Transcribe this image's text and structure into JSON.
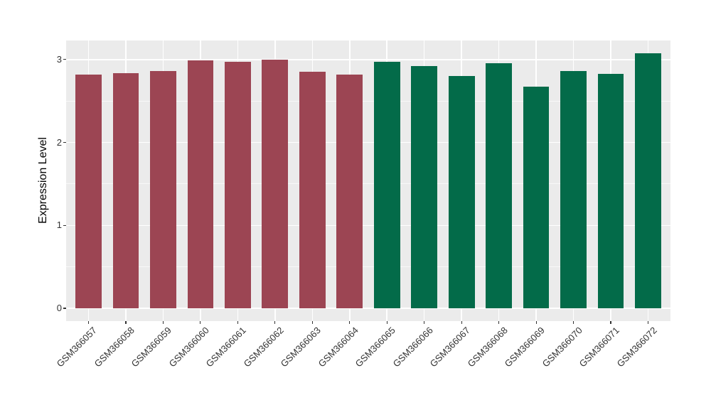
{
  "chart_data": {
    "type": "bar",
    "title": "",
    "xlabel": "",
    "ylabel": "Expression Level",
    "categories": [
      "GSM366057",
      "GSM366058",
      "GSM366059",
      "GSM366060",
      "GSM366061",
      "GSM366062",
      "GSM366063",
      "GSM366064",
      "GSM366065",
      "GSM366066",
      "GSM366067",
      "GSM366068",
      "GSM366069",
      "GSM366070",
      "GSM366071",
      "GSM366072"
    ],
    "values": [
      2.82,
      2.84,
      2.86,
      2.99,
      2.97,
      3.0,
      2.85,
      2.82,
      2.97,
      2.92,
      2.8,
      2.96,
      2.67,
      2.86,
      2.83,
      3.08
    ],
    "group_of_bar": [
      0,
      0,
      0,
      0,
      0,
      0,
      0,
      0,
      1,
      1,
      1,
      1,
      1,
      1,
      1,
      1
    ],
    "group_colors": [
      "#9C4553",
      "#036B49"
    ],
    "y_major_ticks": [
      0,
      1,
      2,
      3
    ],
    "y_minor_ticks": [
      0.5,
      1.5,
      2.5
    ],
    "ylim": [
      -0.15,
      3.23
    ],
    "grid": true,
    "legend": "none",
    "figure_background": "#FFFFFF",
    "panel_background": "#EBEBEB",
    "gridline_color": "#FFFFFF",
    "tick_mark_color": "#333333",
    "axis_text_color": "#333333",
    "axis_title_color": "#000000"
  }
}
